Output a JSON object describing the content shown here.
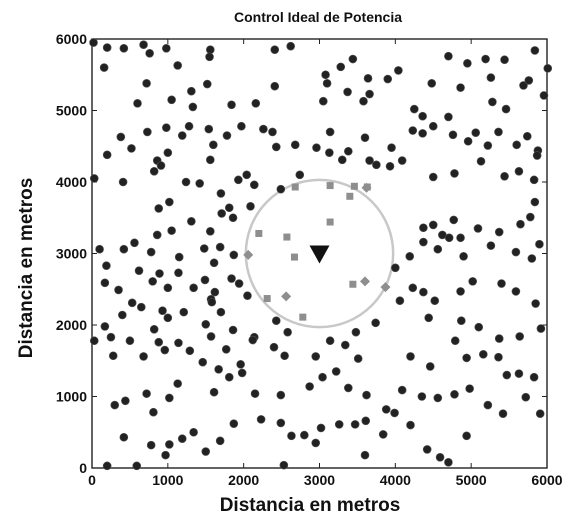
{
  "chart_data": {
    "type": "scatter",
    "title": "Control Ideal de Potencia",
    "xlabel": "Distancia en metros",
    "ylabel": "Distancia en metros",
    "xlim": [
      0,
      6000
    ],
    "ylim": [
      0,
      6000
    ],
    "xticks": [
      "0",
      "1000",
      "2000",
      "3000",
      "4000",
      "5000",
      "6000"
    ],
    "yticks": [
      "0",
      "1000",
      "2000",
      "3000",
      "4000",
      "5000",
      "6000"
    ],
    "grid": false,
    "legend": "none",
    "colors": {
      "nodes": "#222222",
      "in_range": "#8e8e8e",
      "base_station": "#111111",
      "coverage_circle": "#c8c8c8"
    },
    "coverage_circle": {
      "center": [
        3000,
        3000
      ],
      "radius": 1000
    },
    "base_station": {
      "x": 3000,
      "y": 3000,
      "marker": "triangle-down"
    },
    "series": [
      {
        "marker": "circle",
        "points": [
          [
            20,
            5950
          ],
          [
            200,
            5880
          ],
          [
            420,
            5870
          ],
          [
            680,
            5920
          ],
          [
            760,
            5800
          ],
          [
            980,
            5870
          ],
          [
            1130,
            5630
          ],
          [
            1560,
            5850
          ],
          [
            1550,
            5750
          ],
          [
            2410,
            5850
          ],
          [
            2620,
            5900
          ],
          [
            2410,
            5340
          ],
          [
            3080,
            5500
          ],
          [
            3280,
            5610
          ],
          [
            3440,
            5720
          ],
          [
            3640,
            5450
          ],
          [
            3900,
            5440
          ],
          [
            4040,
            5560
          ],
          [
            4480,
            5380
          ],
          [
            4700,
            5760
          ],
          [
            4950,
            5660
          ],
          [
            5190,
            5720
          ],
          [
            5260,
            5460
          ],
          [
            5440,
            5710
          ],
          [
            5840,
            5840
          ],
          [
            6010,
            5590
          ],
          [
            160,
            5600
          ],
          [
            600,
            5100
          ],
          [
            720,
            5380
          ],
          [
            1050,
            5150
          ],
          [
            1310,
            5270
          ],
          [
            1330,
            5050
          ],
          [
            1520,
            5370
          ],
          [
            1840,
            5080
          ],
          [
            2160,
            5100
          ],
          [
            3050,
            5130
          ],
          [
            3100,
            5380
          ],
          [
            3370,
            5260
          ],
          [
            3580,
            5130
          ],
          [
            3660,
            5230
          ],
          [
            4250,
            5020
          ],
          [
            4360,
            4920
          ],
          [
            4700,
            4910
          ],
          [
            4860,
            5320
          ],
          [
            5280,
            5120
          ],
          [
            5460,
            5020
          ],
          [
            5690,
            5350
          ],
          [
            5760,
            5420
          ],
          [
            5960,
            5210
          ],
          [
            380,
            4630
          ],
          [
            520,
            4470
          ],
          [
            730,
            4700
          ],
          [
            980,
            4760
          ],
          [
            1190,
            4650
          ],
          [
            1280,
            4780
          ],
          [
            1540,
            4740
          ],
          [
            1600,
            4520
          ],
          [
            1780,
            4650
          ],
          [
            1970,
            4780
          ],
          [
            2260,
            4740
          ],
          [
            2380,
            4700
          ],
          [
            2430,
            4490
          ],
          [
            2680,
            4520
          ],
          [
            2960,
            4480
          ],
          [
            3140,
            4700
          ],
          [
            3380,
            4430
          ],
          [
            3600,
            4620
          ],
          [
            3950,
            4480
          ],
          [
            4230,
            4720
          ],
          [
            4360,
            4680
          ],
          [
            4500,
            4780
          ],
          [
            4760,
            4660
          ],
          [
            4960,
            4570
          ],
          [
            5060,
            4690
          ],
          [
            5220,
            4510
          ],
          [
            5360,
            4700
          ],
          [
            5600,
            4520
          ],
          [
            5740,
            4640
          ],
          [
            5880,
            4440
          ],
          [
            30,
            4050
          ],
          [
            200,
            4380
          ],
          [
            410,
            4000
          ],
          [
            820,
            4150
          ],
          [
            860,
            4300
          ],
          [
            910,
            4230
          ],
          [
            1000,
            4410
          ],
          [
            1240,
            4000
          ],
          [
            1420,
            3980
          ],
          [
            1560,
            4310
          ],
          [
            1700,
            3840
          ],
          [
            1930,
            4030
          ],
          [
            2040,
            4100
          ],
          [
            2140,
            3960
          ],
          [
            2490,
            3900
          ],
          [
            2740,
            4100
          ],
          [
            3130,
            4410
          ],
          [
            3300,
            4310
          ],
          [
            3660,
            4300
          ],
          [
            3750,
            4240
          ],
          [
            3930,
            4220
          ],
          [
            4090,
            4300
          ],
          [
            4500,
            4070
          ],
          [
            4780,
            4120
          ],
          [
            5130,
            4290
          ],
          [
            5440,
            4080
          ],
          [
            5630,
            4150
          ],
          [
            5830,
            4030
          ],
          [
            5870,
            4370
          ],
          [
            880,
            3630
          ],
          [
            1020,
            3720
          ],
          [
            1310,
            3450
          ],
          [
            1560,
            3310
          ],
          [
            1710,
            3560
          ],
          [
            1810,
            3640
          ],
          [
            1860,
            3500
          ],
          [
            2090,
            3660
          ],
          [
            4370,
            3360
          ],
          [
            4500,
            3400
          ],
          [
            4620,
            3260
          ],
          [
            4770,
            3470
          ],
          [
            4860,
            3220
          ],
          [
            5090,
            3350
          ],
          [
            5370,
            3300
          ],
          [
            5650,
            3410
          ],
          [
            5780,
            3510
          ],
          [
            5840,
            3720
          ],
          [
            100,
            3060
          ],
          [
            190,
            2830
          ],
          [
            420,
            3060
          ],
          [
            560,
            3150
          ],
          [
            780,
            3020
          ],
          [
            860,
            3260
          ],
          [
            1050,
            3320
          ],
          [
            1150,
            2950
          ],
          [
            1480,
            3070
          ],
          [
            1610,
            2870
          ],
          [
            1690,
            3090
          ],
          [
            1870,
            2980
          ],
          [
            4370,
            3160
          ],
          [
            4190,
            2960
          ],
          [
            4000,
            2800
          ],
          [
            4560,
            3060
          ],
          [
            4710,
            3220
          ],
          [
            4900,
            2960
          ],
          [
            5260,
            3110
          ],
          [
            5590,
            3020
          ],
          [
            5800,
            2930
          ],
          [
            5900,
            3130
          ],
          [
            170,
            2590
          ],
          [
            350,
            2490
          ],
          [
            620,
            2760
          ],
          [
            800,
            2610
          ],
          [
            890,
            2720
          ],
          [
            1000,
            2520
          ],
          [
            1140,
            2730
          ],
          [
            1340,
            2520
          ],
          [
            1490,
            2630
          ],
          [
            1570,
            2360
          ],
          [
            1620,
            2460
          ],
          [
            1840,
            2650
          ],
          [
            1940,
            2580
          ],
          [
            2050,
            2410
          ],
          [
            4230,
            2520
          ],
          [
            4370,
            2460
          ],
          [
            4520,
            2340
          ],
          [
            4860,
            2470
          ],
          [
            5020,
            2610
          ],
          [
            5400,
            2580
          ],
          [
            5590,
            2470
          ],
          [
            5850,
            2300
          ],
          [
            170,
            1980
          ],
          [
            250,
            1830
          ],
          [
            400,
            2140
          ],
          [
            530,
            2310
          ],
          [
            650,
            2250
          ],
          [
            820,
            1940
          ],
          [
            930,
            2200
          ],
          [
            1000,
            2100
          ],
          [
            1210,
            2180
          ],
          [
            1500,
            2010
          ],
          [
            1580,
            2320
          ],
          [
            1700,
            2180
          ],
          [
            1860,
            1930
          ],
          [
            2140,
            1830
          ],
          [
            2430,
            2060
          ],
          [
            2580,
            1900
          ],
          [
            3480,
            1900
          ],
          [
            3740,
            2030
          ],
          [
            4060,
            2340
          ],
          [
            4440,
            2100
          ],
          [
            4870,
            2060
          ],
          [
            5100,
            1970
          ],
          [
            5370,
            1810
          ],
          [
            5640,
            1840
          ],
          [
            5920,
            1950
          ],
          [
            30,
            1780
          ],
          [
            280,
            1570
          ],
          [
            500,
            1780
          ],
          [
            680,
            1560
          ],
          [
            880,
            1760
          ],
          [
            960,
            1650
          ],
          [
            1140,
            1750
          ],
          [
            1290,
            1640
          ],
          [
            1460,
            1480
          ],
          [
            1570,
            1840
          ],
          [
            1670,
            1380
          ],
          [
            1770,
            1660
          ],
          [
            1960,
            1450
          ],
          [
            2120,
            1790
          ],
          [
            2400,
            1690
          ],
          [
            2540,
            1570
          ],
          [
            2950,
            1560
          ],
          [
            3140,
            1780
          ],
          [
            3340,
            1720
          ],
          [
            3510,
            1530
          ],
          [
            4200,
            1560
          ],
          [
            4460,
            1420
          ],
          [
            4790,
            1780
          ],
          [
            4940,
            1540
          ],
          [
            5160,
            1590
          ],
          [
            5360,
            1550
          ],
          [
            5470,
            1300
          ],
          [
            5630,
            1320
          ],
          [
            5830,
            1270
          ],
          [
            300,
            880
          ],
          [
            440,
            940
          ],
          [
            720,
            1040
          ],
          [
            810,
            780
          ],
          [
            1020,
            980
          ],
          [
            1130,
            1180
          ],
          [
            1610,
            1060
          ],
          [
            1810,
            1270
          ],
          [
            1980,
            1330
          ],
          [
            2150,
            1040
          ],
          [
            2490,
            1020
          ],
          [
            2870,
            1140
          ],
          [
            3040,
            1270
          ],
          [
            3220,
            1350
          ],
          [
            3380,
            1120
          ],
          [
            3620,
            1020
          ],
          [
            3880,
            820
          ],
          [
            4090,
            1090
          ],
          [
            4350,
            1000
          ],
          [
            4560,
            980
          ],
          [
            4780,
            1030
          ],
          [
            4980,
            1110
          ],
          [
            5220,
            880
          ],
          [
            5420,
            760
          ],
          [
            5720,
            990
          ],
          [
            5910,
            760
          ],
          [
            200,
            30
          ],
          [
            420,
            430
          ],
          [
            780,
            320
          ],
          [
            970,
            180
          ],
          [
            1190,
            410
          ],
          [
            1340,
            500
          ],
          [
            1500,
            230
          ],
          [
            1690,
            380
          ],
          [
            1870,
            620
          ],
          [
            2230,
            680
          ],
          [
            2490,
            630
          ],
          [
            2630,
            450
          ],
          [
            2800,
            460
          ],
          [
            2950,
            350
          ],
          [
            3020,
            560
          ],
          [
            3260,
            610
          ],
          [
            3470,
            610
          ],
          [
            3610,
            660
          ],
          [
            3840,
            470
          ],
          [
            3990,
            770
          ],
          [
            4200,
            600
          ],
          [
            4420,
            260
          ],
          [
            4590,
            150
          ],
          [
            4700,
            80
          ],
          [
            4940,
            450
          ],
          [
            3600,
            180
          ],
          [
            2530,
            40
          ],
          [
            1020,
            330
          ],
          [
            590,
            30
          ]
        ]
      },
      {
        "marker": "square",
        "points": [
          [
            2680,
            3930
          ],
          [
            3140,
            3950
          ],
          [
            3460,
            3940
          ],
          [
            2200,
            3280
          ],
          [
            2570,
            3230
          ],
          [
            2670,
            2950
          ],
          [
            3140,
            3440
          ],
          [
            2310,
            2370
          ],
          [
            2780,
            2110
          ],
          [
            3440,
            2570
          ],
          [
            3630,
            3930
          ],
          [
            3400,
            3800
          ]
        ]
      },
      {
        "marker": "diamond",
        "points": [
          [
            2060,
            2980
          ],
          [
            2560,
            2400
          ],
          [
            3620,
            3920
          ],
          [
            3600,
            2610
          ],
          [
            3870,
            2530
          ]
        ]
      }
    ]
  }
}
